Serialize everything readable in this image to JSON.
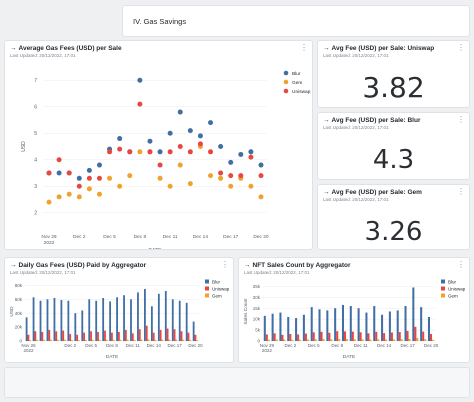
{
  "section": {
    "title": "IV. Gas Savings"
  },
  "scatter_card": {
    "title": "Average Gas Fees (USD) per Sale",
    "updated": "Last Updated: 20/12/2022, 17:01"
  },
  "kpi_uniswap": {
    "title": "Avg Fee (USD) per Sale: Uniswap",
    "updated": "Last Updated: 20/12/2022, 17:01",
    "value": "3.82"
  },
  "kpi_blur": {
    "title": "Avg Fee (USD) per Sale: Blur",
    "updated": "Last Updated: 20/12/2022, 17:01",
    "value": "4.3"
  },
  "kpi_gem": {
    "title": "Avg Fee (USD) per Sale: Gem",
    "updated": "Last Updated: 20/12/2022, 17:01",
    "value": "3.26"
  },
  "daily_card": {
    "title": "Daily Gas Fees (USD) Paid by Aggregator",
    "updated": "Last Updated: 20/12/2022, 17:01"
  },
  "nft_card": {
    "title": "NFT Sales Count by Aggregator",
    "updated": "Last Updated: 20/12/2022, 17:01"
  },
  "colors": {
    "blur": "#3f6fa5",
    "uniswap": "#e8473f",
    "gem": "#f0a22e"
  },
  "chart_data": [
    {
      "type": "scatter",
      "title": "Average Gas Fees (USD) per Sale",
      "xlabel": "DATE",
      "ylabel": "USD",
      "ylim": [
        1.5,
        7.5
      ],
      "y_ticks": [
        2,
        3,
        4,
        5,
        6,
        7
      ],
      "x_ticks": [
        {
          "label": "Nov 29",
          "sub": "2022",
          "day": 0
        },
        {
          "label": "Dec 2",
          "sub": "",
          "day": 3
        },
        {
          "label": "Dec 5",
          "sub": "",
          "day": 6
        },
        {
          "label": "Dec 8",
          "sub": "",
          "day": 9
        },
        {
          "label": "Dec 11",
          "sub": "",
          "day": 12
        },
        {
          "label": "Dec 14",
          "sub": "",
          "day": 15
        },
        {
          "label": "Dec 17",
          "sub": "",
          "day": 18
        },
        {
          "label": "Dec 20",
          "sub": "",
          "day": 21
        }
      ],
      "legend": [
        "Blur",
        "Gem",
        "Uniswap"
      ],
      "legend_position": "top-right",
      "series": [
        {
          "name": "Blur",
          "color_key": "blur",
          "values": [
            3.5,
            3.5,
            3.5,
            3.3,
            3.6,
            3.8,
            4.4,
            4.8,
            4.3,
            7.0,
            4.7,
            4.3,
            5.0,
            5.8,
            5.1,
            4.9,
            5.4,
            4.5,
            3.9,
            4.2,
            4.3,
            3.8
          ]
        },
        {
          "name": "Gem",
          "color_key": "gem",
          "values": [
            2.4,
            2.6,
            2.7,
            2.6,
            2.9,
            2.7,
            3.3,
            3.0,
            3.4,
            4.3,
            4.3,
            3.3,
            3.0,
            3.8,
            3.1,
            4.5,
            3.4,
            3.3,
            3.0,
            3.3,
            3.0,
            2.6
          ]
        },
        {
          "name": "Uniswap",
          "color_key": "uniswap",
          "values": [
            3.5,
            4.0,
            3.5,
            3.0,
            3.3,
            3.3,
            4.3,
            4.4,
            4.3,
            6.1,
            4.3,
            3.8,
            4.3,
            4.5,
            4.3,
            4.6,
            4.3,
            3.5,
            3.4,
            3.4,
            4.1,
            3.4
          ]
        }
      ]
    },
    {
      "type": "bar",
      "title": "Daily Gas Fees (USD) Paid by Aggregator",
      "xlabel": "DATE",
      "ylabel": "USD",
      "ylim": [
        0,
        85000
      ],
      "y_ticks": [
        {
          "v": 0,
          "label": "0"
        },
        {
          "v": 20000,
          "label": "20k"
        },
        {
          "v": 40000,
          "label": "40k"
        },
        {
          "v": 60000,
          "label": "60k"
        },
        {
          "v": 80000,
          "label": "80k"
        }
      ],
      "x_ticks": [
        {
          "label": "Nov 26",
          "sub": "2022",
          "day": 0
        },
        {
          "label": "Dec 2",
          "sub": "",
          "day": 6
        },
        {
          "label": "Dec 5",
          "sub": "",
          "day": 9
        },
        {
          "label": "Dec 8",
          "sub": "",
          "day": 12
        },
        {
          "label": "Dec 11",
          "sub": "",
          "day": 15
        },
        {
          "label": "Dec 14",
          "sub": "",
          "day": 18
        },
        {
          "label": "Dec 17",
          "sub": "",
          "day": 21
        },
        {
          "label": "Dec 20",
          "sub": "",
          "day": 24
        }
      ],
      "legend": [
        "Blur",
        "Uniswap",
        "Gem"
      ],
      "legend_position": "top-right",
      "days": 25,
      "series": [
        {
          "name": "Blur",
          "color_key": "blur",
          "values": [
            34000,
            63000,
            58000,
            60000,
            62000,
            59000,
            58000,
            40000,
            44000,
            60000,
            58000,
            62000,
            57000,
            63000,
            66000,
            60000,
            70000,
            75000,
            50000,
            68000,
            72000,
            60000,
            58000,
            55000,
            28000
          ]
        },
        {
          "name": "Uniswap",
          "color_key": "uniswap",
          "values": [
            9000,
            14000,
            13000,
            16000,
            14000,
            15000,
            10000,
            9000,
            12000,
            14000,
            13000,
            15000,
            12000,
            13000,
            16000,
            11000,
            17000,
            22000,
            12000,
            16000,
            18000,
            17000,
            14000,
            12000,
            9000
          ]
        },
        {
          "name": "Gem",
          "color_key": "gem",
          "values": [
            1500,
            1800,
            1600,
            2000,
            1800,
            1900,
            1400,
            1200,
            1500,
            1800,
            1700,
            1900,
            1600,
            1700,
            2000,
            1500,
            2100,
            2400,
            1500,
            1900,
            2200,
            2000,
            1800,
            1600,
            1200
          ]
        }
      ]
    },
    {
      "type": "bar",
      "title": "NFT Sales Count by Aggregator",
      "xlabel": "DATE",
      "ylabel": "Sales Count",
      "ylim": [
        0,
        27000
      ],
      "y_ticks": [
        {
          "v": 0,
          "label": "0"
        },
        {
          "v": 5000,
          "label": "5k"
        },
        {
          "v": 10000,
          "label": "10k"
        },
        {
          "v": 15000,
          "label": "15k"
        },
        {
          "v": 20000,
          "label": "20k"
        },
        {
          "v": 25000,
          "label": "25k"
        }
      ],
      "x_ticks": [
        {
          "label": "Nov 29",
          "sub": "2022",
          "day": 0
        },
        {
          "label": "Dec 2",
          "sub": "",
          "day": 3
        },
        {
          "label": "Dec 5",
          "sub": "",
          "day": 6
        },
        {
          "label": "Dec 8",
          "sub": "",
          "day": 9
        },
        {
          "label": "Dec 11",
          "sub": "",
          "day": 12
        },
        {
          "label": "Dec 14",
          "sub": "",
          "day": 15
        },
        {
          "label": "Dec 17",
          "sub": "",
          "day": 18
        },
        {
          "label": "Dec 20",
          "sub": "",
          "day": 21
        }
      ],
      "legend": [
        "Blur",
        "Uniswap",
        "Gem"
      ],
      "legend_position": "top-right",
      "days": 22,
      "series": [
        {
          "name": "Blur",
          "color_key": "blur",
          "values": [
            11500,
            12500,
            13000,
            11000,
            10500,
            12000,
            15500,
            14500,
            14000,
            15000,
            16500,
            16000,
            15000,
            13000,
            16000,
            12000,
            13500,
            14000,
            16000,
            24500,
            15500,
            11000
          ]
        },
        {
          "name": "Uniswap",
          "color_key": "uniswap",
          "values": [
            3000,
            3500,
            2800,
            3200,
            3000,
            3400,
            4000,
            4200,
            3800,
            4500,
            4400,
            4300,
            4000,
            3500,
            4200,
            3600,
            3900,
            4100,
            4600,
            6500,
            4300,
            3200
          ]
        },
        {
          "name": "Gem",
          "color_key": "gem",
          "values": [
            600,
            700,
            650,
            600,
            550,
            700,
            800,
            850,
            750,
            900,
            850,
            800,
            750,
            650,
            800,
            700,
            750,
            800,
            900,
            1300,
            850,
            600
          ]
        }
      ]
    }
  ]
}
